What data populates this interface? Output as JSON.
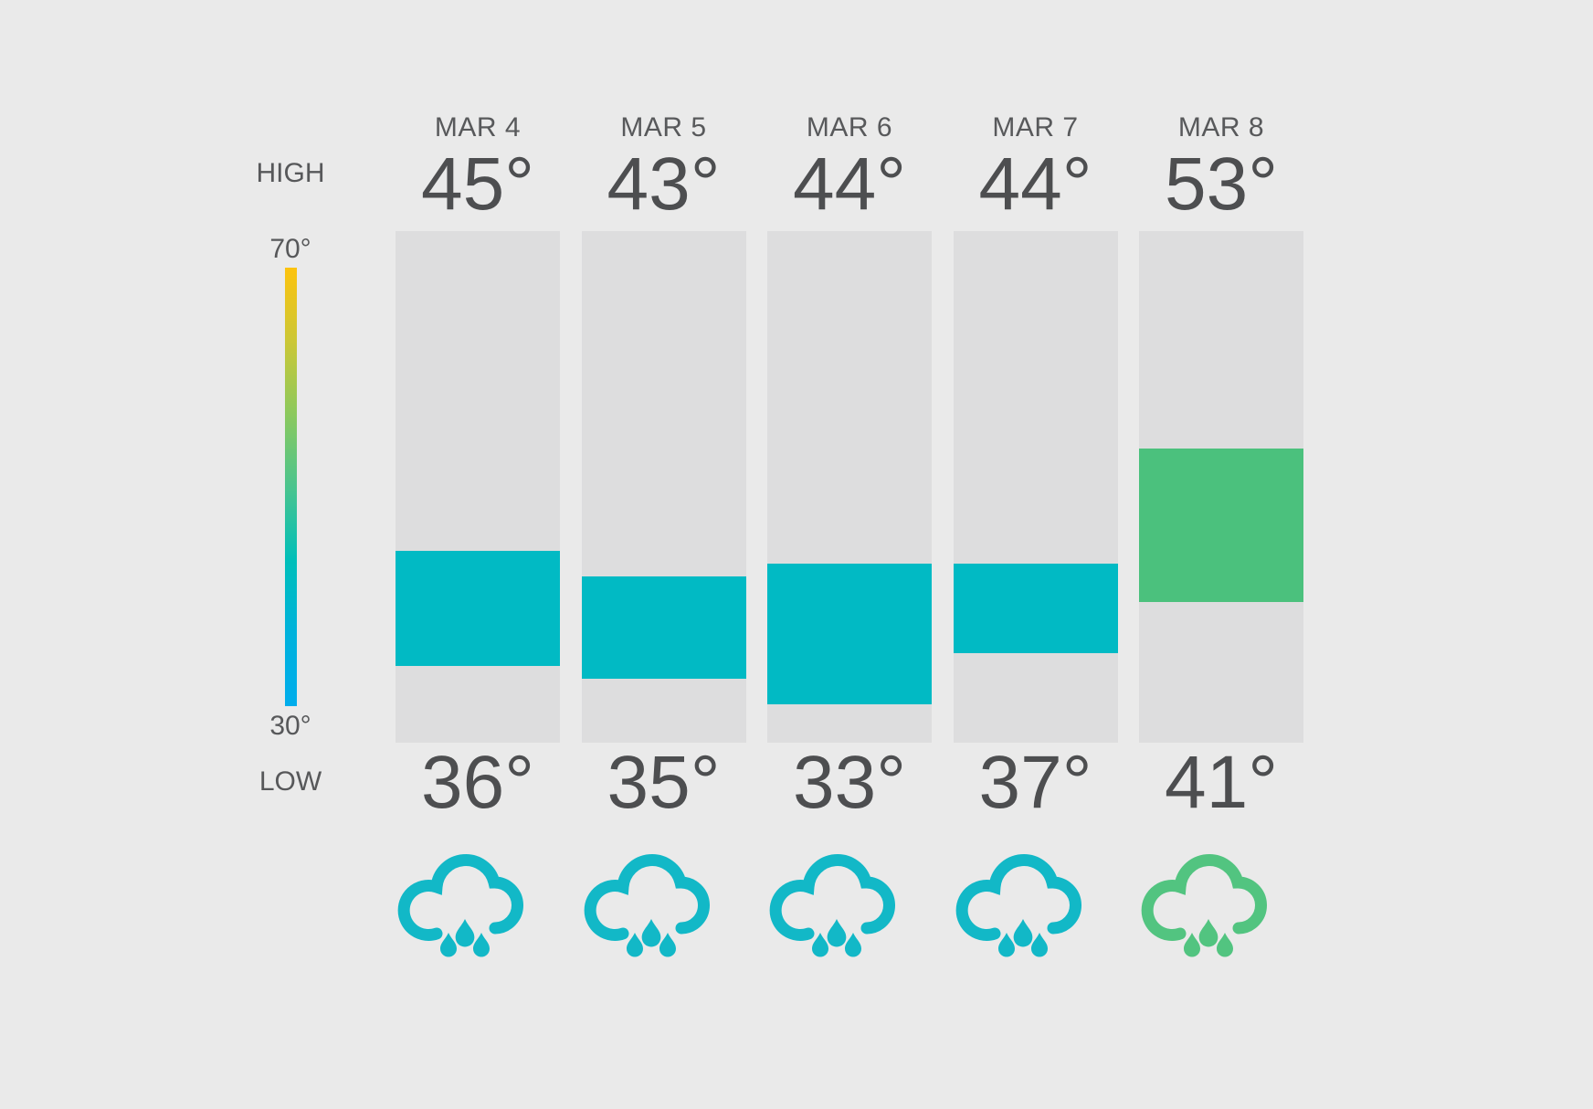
{
  "scale": {
    "high_label": "HIGH",
    "low_label": "LOW",
    "top_tick": "70°",
    "bottom_tick": "30°",
    "max_value": 70,
    "min_value": 30,
    "gradient_stops": [
      "#FDC30E",
      "#CCC735",
      "#8CC95D",
      "#4AC48E",
      "#00BFB9",
      "#00B2DC",
      "#00ADEC"
    ]
  },
  "days": [
    {
      "date": "MAR 4",
      "high": 45,
      "low": 36,
      "high_label": "45°",
      "low_label": "36°",
      "bar_color": "#01BAC4",
      "icon": "rain-cloud",
      "icon_color": "#12B8C7"
    },
    {
      "date": "MAR 5",
      "high": 43,
      "low": 35,
      "high_label": "43°",
      "low_label": "35°",
      "bar_color": "#01BAC4",
      "icon": "rain-cloud",
      "icon_color": "#12B8C7"
    },
    {
      "date": "MAR 6",
      "high": 44,
      "low": 33,
      "high_label": "44°",
      "low_label": "33°",
      "bar_color": "#01BAC4",
      "icon": "rain-cloud",
      "icon_color": "#12B8C7"
    },
    {
      "date": "MAR 7",
      "high": 44,
      "low": 37,
      "high_label": "44°",
      "low_label": "37°",
      "bar_color": "#01BAC4",
      "icon": "rain-cloud",
      "icon_color": "#12B8C7"
    },
    {
      "date": "MAR 8",
      "high": 53,
      "low": 41,
      "high_label": "53°",
      "low_label": "41°",
      "bar_color": "#4BC17D",
      "icon": "rain-cloud",
      "icon_color": "#52C480"
    }
  ],
  "chart_data": {
    "type": "bar",
    "subtype": "floating-range-bars",
    "categories": [
      "MAR 4",
      "MAR 5",
      "MAR 6",
      "MAR 7",
      "MAR 8"
    ],
    "series": [
      {
        "name": "High",
        "values": [
          45,
          43,
          44,
          44,
          53
        ]
      },
      {
        "name": "Low",
        "values": [
          36,
          35,
          33,
          37,
          41
        ]
      }
    ],
    "ylim": [
      30,
      70
    ],
    "ylabel": "",
    "xlabel": "",
    "grid": false,
    "legend_position": "left-gradient-scale",
    "scale_annotations": [
      "HIGH",
      "70°",
      "30°",
      "LOW"
    ],
    "bar_colors": [
      "#01BAC4",
      "#01BAC4",
      "#01BAC4",
      "#01BAC4",
      "#4BC17D"
    ],
    "track_color": "#DDDDDE",
    "icons_per_category": [
      "rain-cloud",
      "rain-cloud",
      "rain-cloud",
      "rain-cloud",
      "rain-cloud"
    ]
  },
  "colors": {
    "background": "#EAEAEA",
    "track": "#DDDDDE",
    "teal": "#01BAC4",
    "green": "#4BC17D",
    "date_text": "#58595B",
    "temp_text": "#4D4E50",
    "scale_text": "#57585A"
  }
}
